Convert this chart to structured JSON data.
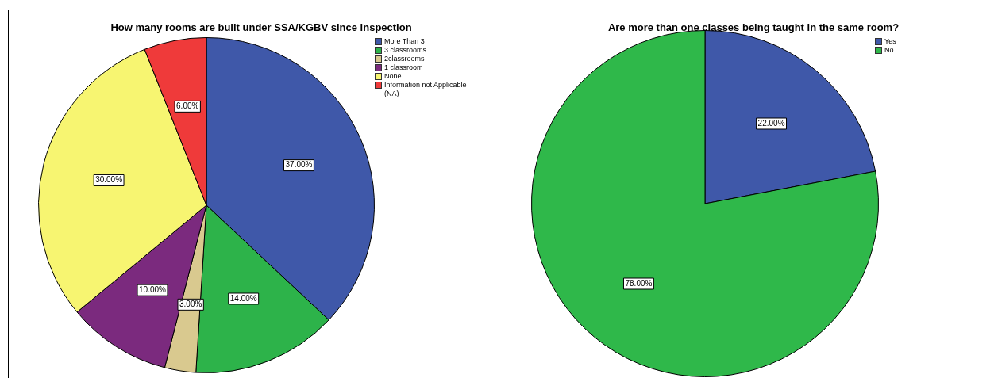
{
  "chart_data": [
    {
      "type": "pie",
      "title": "How many rooms are built under SSA/KGBV since inspection",
      "categories": [
        "More Than 3",
        "3 classrooms",
        "2classrooms",
        "1 classroom",
        "None",
        "Information not Applicable (NA)"
      ],
      "values": [
        37,
        14,
        3,
        10,
        30,
        6
      ],
      "value_labels": [
        "37.00%",
        "14.00%",
        "3.00%",
        "10.00%",
        "30.00%",
        "6.00%"
      ],
      "colors": [
        "#3f58a9",
        "#2db34a",
        "#d9c98f",
        "#7b2a7e",
        "#f7f571",
        "#ef3a3a"
      ],
      "legend": "top right"
    },
    {
      "type": "pie",
      "title": "Are more than one classes being taught in the same room?",
      "categories": [
        "Yes",
        "No"
      ],
      "values": [
        22,
        78
      ],
      "value_labels": [
        "22.00%",
        "78.00%"
      ],
      "colors": [
        "#3f58a9",
        "#2fb84a"
      ],
      "legend": "top right"
    }
  ]
}
